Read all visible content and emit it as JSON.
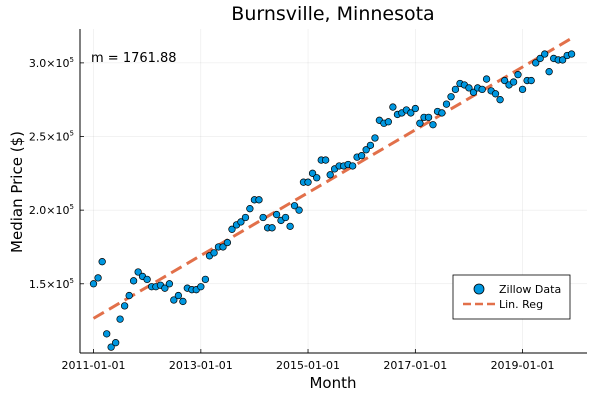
{
  "chart_data": {
    "type": "scatter",
    "title": "Burnsville, Minnesota",
    "xlabel": "Month",
    "ylabel": "Median Price ($)",
    "annotation": "m = 1761.88",
    "x_ticks": [
      "2011-01-01",
      "2013-01-01",
      "2015-01-01",
      "2017-01-01",
      "2019-01-01"
    ],
    "y_ticks": [
      {
        "mantissa": "1.5×10",
        "exp": "5",
        "value": 150000
      },
      {
        "mantissa": "2.0×10",
        "exp": "5",
        "value": 200000
      },
      {
        "mantissa": "2.5×10",
        "exp": "5",
        "value": 250000
      },
      {
        "mantissa": "3.0×10",
        "exp": "5",
        "value": 300000
      }
    ],
    "xlim": [
      "2010-10-01",
      "2020-03-15"
    ],
    "ylim": [
      103000,
      323000
    ],
    "grid": true,
    "legend_position": "bottom-right",
    "colors": {
      "scatter": "#0097e0",
      "regression": "#e2704a"
    },
    "series": [
      {
        "name": "Zillow Data",
        "kind": "scatter",
        "x": [
          "2011-01",
          "2011-02",
          "2011-03",
          "2011-04",
          "2011-05",
          "2011-06",
          "2011-07",
          "2011-08",
          "2011-09",
          "2011-10",
          "2011-11",
          "2011-12",
          "2012-01",
          "2012-02",
          "2012-03",
          "2012-04",
          "2012-05",
          "2012-06",
          "2012-07",
          "2012-08",
          "2012-09",
          "2012-10",
          "2012-11",
          "2012-12",
          "2013-01",
          "2013-02",
          "2013-03",
          "2013-04",
          "2013-05",
          "2013-06",
          "2013-07",
          "2013-08",
          "2013-09",
          "2013-10",
          "2013-11",
          "2013-12",
          "2014-01",
          "2014-02",
          "2014-03",
          "2014-04",
          "2014-05",
          "2014-06",
          "2014-07",
          "2014-08",
          "2014-09",
          "2014-10",
          "2014-11",
          "2014-12",
          "2015-01",
          "2015-02",
          "2015-03",
          "2015-04",
          "2015-05",
          "2015-06",
          "2015-07",
          "2015-08",
          "2015-09",
          "2015-10",
          "2015-11",
          "2015-12",
          "2016-01",
          "2016-02",
          "2016-03",
          "2016-04",
          "2016-05",
          "2016-06",
          "2016-07",
          "2016-08",
          "2016-09",
          "2016-10",
          "2016-11",
          "2016-12",
          "2017-01",
          "2017-02",
          "2017-03",
          "2017-04",
          "2017-05",
          "2017-06",
          "2017-07",
          "2017-08",
          "2017-09",
          "2017-10",
          "2017-11",
          "2017-12",
          "2018-01",
          "2018-02",
          "2018-03",
          "2018-04",
          "2018-05",
          "2018-06",
          "2018-07",
          "2018-08",
          "2018-09",
          "2018-10",
          "2018-11",
          "2018-12",
          "2019-01",
          "2019-02",
          "2019-03",
          "2019-04",
          "2019-05",
          "2019-06",
          "2019-07",
          "2019-08",
          "2019-09",
          "2019-10",
          "2019-11",
          "2019-12"
        ],
        "y": [
          150000,
          154000,
          165000,
          116000,
          107000,
          110000,
          126000,
          135000,
          142000,
          152000,
          158000,
          155000,
          153000,
          148000,
          148000,
          149000,
          147000,
          150000,
          139000,
          142000,
          138000,
          147000,
          146000,
          146000,
          148000,
          153000,
          169000,
          171000,
          175000,
          175000,
          178000,
          187000,
          190000,
          192000,
          195000,
          201000,
          207000,
          207000,
          195000,
          188000,
          188000,
          197000,
          193000,
          195000,
          189000,
          203000,
          200000,
          219000,
          219000,
          225000,
          222000,
          234000,
          234000,
          224000,
          228000,
          230000,
          230000,
          231000,
          230000,
          236000,
          237000,
          241000,
          244000,
          249000,
          261000,
          259000,
          260000,
          270000,
          265000,
          266000,
          268000,
          266000,
          269000,
          259000,
          263000,
          263000,
          258000,
          267000,
          266000,
          272000,
          277000,
          282000,
          286000,
          285000,
          283000,
          280000,
          283000,
          282000,
          289000,
          281000,
          279000,
          275000,
          288000,
          285000,
          287000,
          292000,
          282000,
          288000,
          288000,
          300000,
          303000,
          306000,
          294000,
          303000,
          302000,
          302000,
          305000,
          306000
        ]
      },
      {
        "name": "Lin. Reg",
        "kind": "line",
        "x": [
          "2011-01",
          "2019-12"
        ],
        "y": [
          126500,
          316700
        ]
      }
    ]
  }
}
